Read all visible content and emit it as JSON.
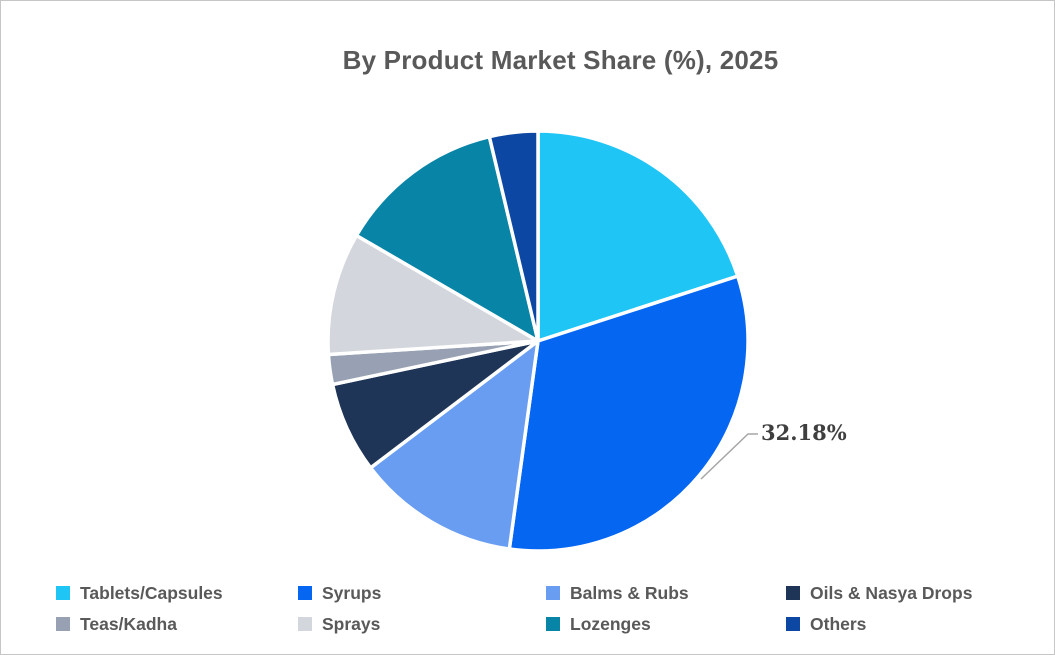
{
  "page": {
    "background": "#FFFFFF",
    "border_color": "#C6C6C6"
  },
  "chart_data": {
    "type": "pie",
    "title": "By Product Market Share (%), 2025",
    "title_color": "#595959",
    "start_angle_deg": 0,
    "direction": "clockwise",
    "legend_position": "bottom",
    "legend_text_color": "#595959",
    "slices": [
      {
        "label": "Tablets/Capsules",
        "value": 20.0,
        "color": "#1FC5F5"
      },
      {
        "label": "Syrups",
        "value": 32.18,
        "color": "#0566F2"
      },
      {
        "label": "Balms & Rubs",
        "value": 12.5,
        "color": "#689DF2"
      },
      {
        "label": "Oils & Nasya Drops",
        "value": 7.0,
        "color": "#1F3557"
      },
      {
        "label": "Teas/Kadha",
        "value": 2.3,
        "color": "#98A1B3"
      },
      {
        "label": "Sprays",
        "value": 9.4,
        "color": "#D4D6DD"
      },
      {
        "label": "Lozenges",
        "value": 12.9,
        "color": "#0784A6"
      },
      {
        "label": "Others",
        "value": 3.72,
        "color": "#0C47A3"
      }
    ],
    "data_label": {
      "text": "32.18%",
      "slice": "Syrups",
      "color": "#3F3F3F",
      "leader_line_color": "#A6A6A6"
    }
  }
}
